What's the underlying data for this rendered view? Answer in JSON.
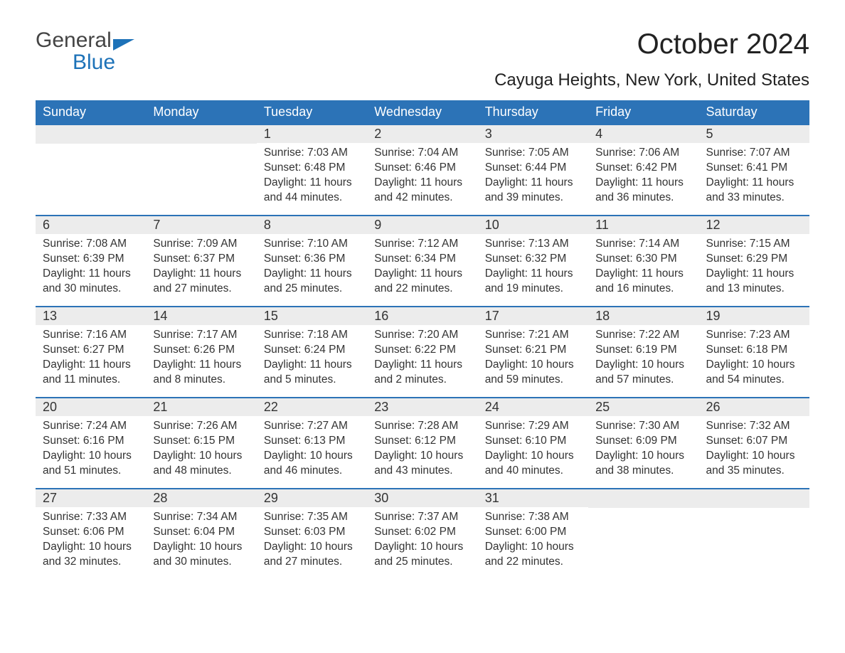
{
  "logo": {
    "general": "General",
    "blue": "Blue"
  },
  "title": "October 2024",
  "location": "Cayuga Heights, New York, United States",
  "colors": {
    "header_bg": "#2c73b7",
    "header_text": "#ffffff",
    "daynum_bg": "#ececec",
    "row_border": "#2c73b7",
    "body_text": "#333333",
    "logo_blue": "#1d72b8",
    "background": "#ffffff"
  },
  "typography": {
    "title_fontsize": 40,
    "location_fontsize": 24,
    "dow_fontsize": 18,
    "daynum_fontsize": 18,
    "cell_fontsize": 15.5
  },
  "days_of_week": [
    "Sunday",
    "Monday",
    "Tuesday",
    "Wednesday",
    "Thursday",
    "Friday",
    "Saturday"
  ],
  "weeks": [
    [
      {
        "num": "",
        "sunrise": "",
        "sunset": "",
        "daylight": ""
      },
      {
        "num": "",
        "sunrise": "",
        "sunset": "",
        "daylight": ""
      },
      {
        "num": "1",
        "sunrise": "Sunrise: 7:03 AM",
        "sunset": "Sunset: 6:48 PM",
        "daylight": "Daylight: 11 hours and 44 minutes."
      },
      {
        "num": "2",
        "sunrise": "Sunrise: 7:04 AM",
        "sunset": "Sunset: 6:46 PM",
        "daylight": "Daylight: 11 hours and 42 minutes."
      },
      {
        "num": "3",
        "sunrise": "Sunrise: 7:05 AM",
        "sunset": "Sunset: 6:44 PM",
        "daylight": "Daylight: 11 hours and 39 minutes."
      },
      {
        "num": "4",
        "sunrise": "Sunrise: 7:06 AM",
        "sunset": "Sunset: 6:42 PM",
        "daylight": "Daylight: 11 hours and 36 minutes."
      },
      {
        "num": "5",
        "sunrise": "Sunrise: 7:07 AM",
        "sunset": "Sunset: 6:41 PM",
        "daylight": "Daylight: 11 hours and 33 minutes."
      }
    ],
    [
      {
        "num": "6",
        "sunrise": "Sunrise: 7:08 AM",
        "sunset": "Sunset: 6:39 PM",
        "daylight": "Daylight: 11 hours and 30 minutes."
      },
      {
        "num": "7",
        "sunrise": "Sunrise: 7:09 AM",
        "sunset": "Sunset: 6:37 PM",
        "daylight": "Daylight: 11 hours and 27 minutes."
      },
      {
        "num": "8",
        "sunrise": "Sunrise: 7:10 AM",
        "sunset": "Sunset: 6:36 PM",
        "daylight": "Daylight: 11 hours and 25 minutes."
      },
      {
        "num": "9",
        "sunrise": "Sunrise: 7:12 AM",
        "sunset": "Sunset: 6:34 PM",
        "daylight": "Daylight: 11 hours and 22 minutes."
      },
      {
        "num": "10",
        "sunrise": "Sunrise: 7:13 AM",
        "sunset": "Sunset: 6:32 PM",
        "daylight": "Daylight: 11 hours and 19 minutes."
      },
      {
        "num": "11",
        "sunrise": "Sunrise: 7:14 AM",
        "sunset": "Sunset: 6:30 PM",
        "daylight": "Daylight: 11 hours and 16 minutes."
      },
      {
        "num": "12",
        "sunrise": "Sunrise: 7:15 AM",
        "sunset": "Sunset: 6:29 PM",
        "daylight": "Daylight: 11 hours and 13 minutes."
      }
    ],
    [
      {
        "num": "13",
        "sunrise": "Sunrise: 7:16 AM",
        "sunset": "Sunset: 6:27 PM",
        "daylight": "Daylight: 11 hours and 11 minutes."
      },
      {
        "num": "14",
        "sunrise": "Sunrise: 7:17 AM",
        "sunset": "Sunset: 6:26 PM",
        "daylight": "Daylight: 11 hours and 8 minutes."
      },
      {
        "num": "15",
        "sunrise": "Sunrise: 7:18 AM",
        "sunset": "Sunset: 6:24 PM",
        "daylight": "Daylight: 11 hours and 5 minutes."
      },
      {
        "num": "16",
        "sunrise": "Sunrise: 7:20 AM",
        "sunset": "Sunset: 6:22 PM",
        "daylight": "Daylight: 11 hours and 2 minutes."
      },
      {
        "num": "17",
        "sunrise": "Sunrise: 7:21 AM",
        "sunset": "Sunset: 6:21 PM",
        "daylight": "Daylight: 10 hours and 59 minutes."
      },
      {
        "num": "18",
        "sunrise": "Sunrise: 7:22 AM",
        "sunset": "Sunset: 6:19 PM",
        "daylight": "Daylight: 10 hours and 57 minutes."
      },
      {
        "num": "19",
        "sunrise": "Sunrise: 7:23 AM",
        "sunset": "Sunset: 6:18 PM",
        "daylight": "Daylight: 10 hours and 54 minutes."
      }
    ],
    [
      {
        "num": "20",
        "sunrise": "Sunrise: 7:24 AM",
        "sunset": "Sunset: 6:16 PM",
        "daylight": "Daylight: 10 hours and 51 minutes."
      },
      {
        "num": "21",
        "sunrise": "Sunrise: 7:26 AM",
        "sunset": "Sunset: 6:15 PM",
        "daylight": "Daylight: 10 hours and 48 minutes."
      },
      {
        "num": "22",
        "sunrise": "Sunrise: 7:27 AM",
        "sunset": "Sunset: 6:13 PM",
        "daylight": "Daylight: 10 hours and 46 minutes."
      },
      {
        "num": "23",
        "sunrise": "Sunrise: 7:28 AM",
        "sunset": "Sunset: 6:12 PM",
        "daylight": "Daylight: 10 hours and 43 minutes."
      },
      {
        "num": "24",
        "sunrise": "Sunrise: 7:29 AM",
        "sunset": "Sunset: 6:10 PM",
        "daylight": "Daylight: 10 hours and 40 minutes."
      },
      {
        "num": "25",
        "sunrise": "Sunrise: 7:30 AM",
        "sunset": "Sunset: 6:09 PM",
        "daylight": "Daylight: 10 hours and 38 minutes."
      },
      {
        "num": "26",
        "sunrise": "Sunrise: 7:32 AM",
        "sunset": "Sunset: 6:07 PM",
        "daylight": "Daylight: 10 hours and 35 minutes."
      }
    ],
    [
      {
        "num": "27",
        "sunrise": "Sunrise: 7:33 AM",
        "sunset": "Sunset: 6:06 PM",
        "daylight": "Daylight: 10 hours and 32 minutes."
      },
      {
        "num": "28",
        "sunrise": "Sunrise: 7:34 AM",
        "sunset": "Sunset: 6:04 PM",
        "daylight": "Daylight: 10 hours and 30 minutes."
      },
      {
        "num": "29",
        "sunrise": "Sunrise: 7:35 AM",
        "sunset": "Sunset: 6:03 PM",
        "daylight": "Daylight: 10 hours and 27 minutes."
      },
      {
        "num": "30",
        "sunrise": "Sunrise: 7:37 AM",
        "sunset": "Sunset: 6:02 PM",
        "daylight": "Daylight: 10 hours and 25 minutes."
      },
      {
        "num": "31",
        "sunrise": "Sunrise: 7:38 AM",
        "sunset": "Sunset: 6:00 PM",
        "daylight": "Daylight: 10 hours and 22 minutes."
      },
      {
        "num": "",
        "sunrise": "",
        "sunset": "",
        "daylight": ""
      },
      {
        "num": "",
        "sunrise": "",
        "sunset": "",
        "daylight": ""
      }
    ]
  ]
}
